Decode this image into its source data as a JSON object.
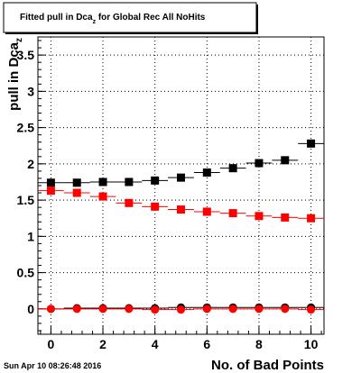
{
  "chart_data": {
    "type": "scatter",
    "title": {
      "main": "Fitted pull in Dca",
      "sub": "z",
      "rest": "  for Global Rec All NoHits"
    },
    "ylabel": {
      "main": "pull in Dca",
      "sub": "z"
    },
    "xlabel": "No. of Bad Points",
    "timestamp": "Sun Apr 10 08:26:48 2016",
    "xlim": [
      -0.5,
      10.5
    ],
    "ylim": [
      -0.35,
      3.75
    ],
    "xticks": [
      "0",
      "2",
      "4",
      "6",
      "8",
      "10"
    ],
    "yticks": [
      "0",
      "0.5",
      "1",
      "1.5",
      "2",
      "2.5",
      "3",
      "3.5"
    ],
    "grid": true,
    "legend": "none",
    "x": [
      0,
      1,
      2,
      3,
      4,
      5,
      6,
      7,
      8,
      9,
      10
    ],
    "series": [
      {
        "color": "#000000",
        "marker": "square",
        "values": [
          1.74,
          1.74,
          1.75,
          1.75,
          1.77,
          1.81,
          1.88,
          1.94,
          2.01,
          2.05,
          2.28
        ]
      },
      {
        "color": "#ff0000",
        "marker": "square",
        "values": [
          1.63,
          1.6,
          1.55,
          1.46,
          1.41,
          1.37,
          1.34,
          1.32,
          1.28,
          1.26,
          1.25
        ]
      },
      {
        "color": "#000000",
        "marker": "circle",
        "values": [
          0.0,
          0.01,
          0.01,
          0.01,
          0.01,
          0.02,
          0.02,
          0.02,
          0.02,
          0.02,
          0.02
        ]
      },
      {
        "color": "#ff0000",
        "marker": "circle",
        "values": [
          0.0,
          0.0,
          0.0,
          0.0,
          -0.01,
          -0.01,
          0.0,
          0.0,
          0.0,
          0.0,
          -0.01
        ]
      }
    ]
  }
}
